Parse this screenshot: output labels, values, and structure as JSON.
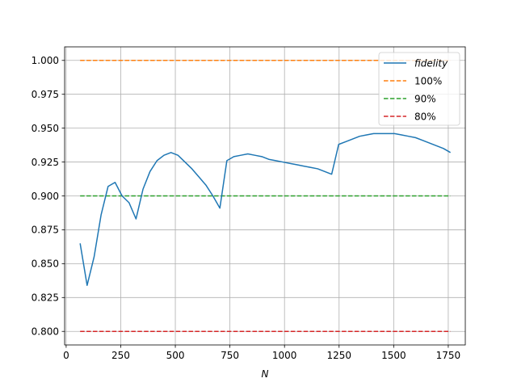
{
  "chart_data": {
    "type": "line",
    "title": "",
    "xlabel": "N",
    "ylabel": "",
    "xlim": [
      -7,
      1828
    ],
    "ylim": [
      0.79,
      1.01
    ],
    "grid": true,
    "legend_position": "top-right",
    "x_ticks": [
      0,
      250,
      500,
      750,
      1000,
      1250,
      1500,
      1750
    ],
    "x_tick_labels": [
      "0",
      "250",
      "500",
      "750",
      "1000",
      "1250",
      "1500",
      "1750"
    ],
    "y_ticks": [
      0.8,
      0.825,
      0.85,
      0.875,
      0.9,
      0.925,
      0.95,
      0.975,
      1.0
    ],
    "y_tick_labels": [
      "0.800",
      "0.825",
      "0.850",
      "0.875",
      "0.900",
      "0.925",
      "0.950",
      "0.975",
      "1.000"
    ],
    "series": [
      {
        "name": "fidelity",
        "style": "solid",
        "color": "#1f77b4",
        "x": [
          64,
          96,
          128,
          160,
          192,
          224,
          256,
          288,
          320,
          352,
          384,
          416,
          448,
          480,
          512,
          544,
          576,
          608,
          640,
          672,
          704,
          736,
          768,
          800,
          832,
          864,
          896,
          928,
          960,
          992,
          1024,
          1056,
          1088,
          1120,
          1152,
          1184,
          1216,
          1248,
          1280,
          1312,
          1344,
          1376,
          1408,
          1440,
          1472,
          1504,
          1536,
          1568,
          1600,
          1632,
          1664,
          1696,
          1728,
          1760
        ],
        "y": [
          0.865,
          0.834,
          0.855,
          0.886,
          0.907,
          0.91,
          0.9,
          0.895,
          0.883,
          0.905,
          0.918,
          0.926,
          0.93,
          0.932,
          0.93,
          0.925,
          0.92,
          0.914,
          0.908,
          0.9,
          0.891,
          0.926,
          0.929,
          0.93,
          0.931,
          0.93,
          0.929,
          0.927,
          0.926,
          0.925,
          0.924,
          0.923,
          0.922,
          0.921,
          0.92,
          0.918,
          0.916,
          0.938,
          0.94,
          0.942,
          0.944,
          0.945,
          0.946,
          0.946,
          0.946,
          0.946,
          0.945,
          0.944,
          0.943,
          0.941,
          0.939,
          0.937,
          0.935,
          0.932
        ]
      },
      {
        "name": "100%",
        "style": "dashed",
        "color": "#ff7f0e",
        "x": [
          64,
          1760
        ],
        "y": [
          1.0,
          1.0
        ]
      },
      {
        "name": "90%",
        "style": "dashed",
        "color": "#2ca02c",
        "x": [
          64,
          1760
        ],
        "y": [
          0.9,
          0.9
        ]
      },
      {
        "name": "80%",
        "style": "dashed",
        "color": "#d62728",
        "x": [
          64,
          1760
        ],
        "y": [
          0.8,
          0.8
        ]
      }
    ]
  }
}
